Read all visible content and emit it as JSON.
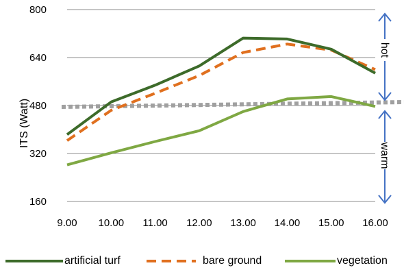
{
  "chart_data": {
    "type": "line",
    "title": "",
    "xlabel": "",
    "ylabel": "ITS (Watt)",
    "categories": [
      "9.00",
      "10.00",
      "11.00",
      "12.00",
      "13.00",
      "14.00",
      "15.00",
      "16.00"
    ],
    "yticks": [
      "160",
      "320",
      "480",
      "640",
      "800"
    ],
    "ylim": [
      160,
      800
    ],
    "grid": "horizontal",
    "legend_position": "bottom",
    "series": [
      {
        "name": "artificial turf",
        "values": [
          383,
          492,
          548,
          612,
          705,
          702,
          668,
          588
        ],
        "color": "#3d6b2a",
        "style": "solid"
      },
      {
        "name": "bare ground",
        "values": [
          363,
          464,
          521,
          580,
          657,
          685,
          665,
          600
        ],
        "color": "#e0701f",
        "style": "dashed"
      },
      {
        "name": "vegetation",
        "values": [
          282,
          322,
          360,
          396,
          460,
          502,
          510,
          477
        ],
        "color": "#7fa843",
        "style": "solid"
      }
    ],
    "threshold": {
      "value": 480,
      "color": "#a0a0a0",
      "style": "dotted"
    },
    "annotations": [
      {
        "label": "hot",
        "from": 480,
        "to": 800
      },
      {
        "label": "warm",
        "from": 160,
        "to": 480
      }
    ],
    "annotation_color": "#4472c4"
  }
}
